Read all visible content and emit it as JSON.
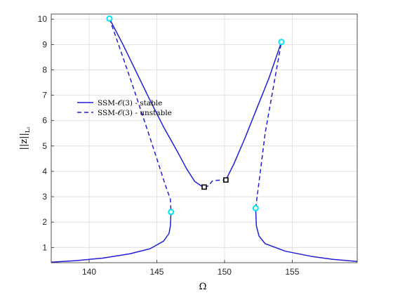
{
  "chart_data": {
    "type": "line",
    "xlabel": "Ω",
    "ylabel": "||z||",
    "ylabel_sub": "L₂",
    "xlim": [
      137.2,
      159.8
    ],
    "ylim": [
      0.4,
      10.2
    ],
    "xticks": [
      140,
      145,
      150,
      155
    ],
    "yticks": [
      1,
      2,
      3,
      4,
      5,
      6,
      7,
      8,
      9,
      10
    ],
    "grid": true,
    "legend_position": "center-left",
    "colors": {
      "curve": "#1f1fd6",
      "bifurcation": "#00e5f0",
      "marker": "#000000"
    },
    "series": [
      {
        "name": "SSM-𝒪(3) - stable",
        "style": "solid",
        "segments": [
          [
            [
              137.2,
              0.42
            ],
            [
              139,
              0.48
            ],
            [
              141,
              0.58
            ],
            [
              143,
              0.75
            ],
            [
              144.5,
              0.95
            ],
            [
              145.5,
              1.25
            ],
            [
              145.9,
              1.55
            ],
            [
              146.0,
              1.85
            ],
            [
              146.05,
              2.4
            ]
          ],
          [
            [
              141.5,
              10.02
            ],
            [
              142.5,
              9.0
            ],
            [
              143.5,
              7.9
            ],
            [
              144.5,
              6.8
            ],
            [
              145.5,
              5.75
            ],
            [
              146.5,
              4.8
            ],
            [
              147.2,
              4.1
            ],
            [
              147.8,
              3.6
            ],
            [
              148.3,
              3.42
            ],
            [
              148.5,
              3.38
            ]
          ],
          [
            [
              150.1,
              3.66
            ],
            [
              150.7,
              4.3
            ],
            [
              151.5,
              5.3
            ],
            [
              152.4,
              6.5
            ],
            [
              153.3,
              7.7
            ],
            [
              154.2,
              9.1
            ]
          ],
          [
            [
              152.3,
              2.55
            ],
            [
              152.35,
              1.85
            ],
            [
              152.55,
              1.45
            ],
            [
              153,
              1.15
            ],
            [
              154.5,
              0.85
            ],
            [
              156.5,
              0.64
            ],
            [
              158,
              0.53
            ],
            [
              159.8,
              0.45
            ]
          ]
        ]
      },
      {
        "name": "SSM-𝒪(3) - unstable",
        "style": "dashed",
        "segments": [
          [
            [
              141.5,
              10.02
            ],
            [
              142.3,
              8.8
            ],
            [
              143.2,
              7.4
            ],
            [
              144.2,
              5.8
            ],
            [
              145.0,
              4.5
            ],
            [
              145.6,
              3.5
            ],
            [
              146.0,
              2.9
            ],
            [
              146.05,
              2.4
            ]
          ],
          [
            [
              148.5,
              3.38
            ],
            [
              148.8,
              3.42
            ],
            [
              149.1,
              3.62
            ],
            [
              149.5,
              3.65
            ],
            [
              150.1,
              3.66
            ]
          ],
          [
            [
              152.3,
              2.55
            ],
            [
              152.6,
              3.8
            ],
            [
              153.0,
              5.5
            ],
            [
              153.6,
              7.3
            ],
            [
              154.2,
              9.1
            ]
          ]
        ]
      }
    ],
    "points": [
      {
        "kind": "bifurcation",
        "x": 141.5,
        "y": 10.02
      },
      {
        "kind": "bifurcation",
        "x": 146.05,
        "y": 2.4
      },
      {
        "kind": "bifurcation",
        "x": 152.3,
        "y": 2.55
      },
      {
        "kind": "bifurcation",
        "x": 154.2,
        "y": 9.1
      },
      {
        "kind": "square",
        "x": 148.5,
        "y": 3.38
      },
      {
        "kind": "square",
        "x": 150.1,
        "y": 3.66
      }
    ]
  }
}
